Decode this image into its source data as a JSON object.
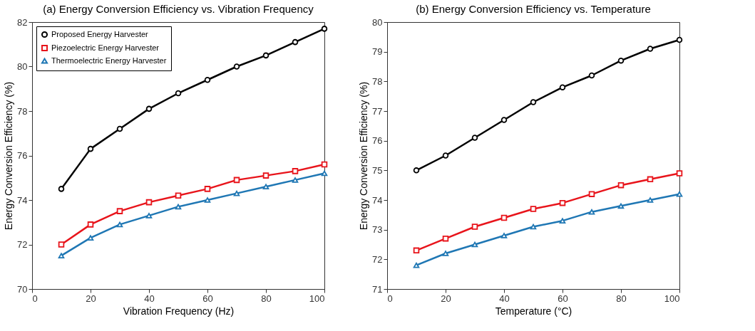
{
  "chart_data": [
    {
      "type": "line",
      "title": "(a) Energy Conversion Efficiency vs. Vibration Frequency",
      "xlabel": "Vibration Frequency (Hz)",
      "line_style": "solid",
      "ylabel": "Energy Conversion Efficiency (%)",
      "x": [
        10,
        20,
        30,
        40,
        50,
        60,
        70,
        80,
        90,
        100
      ],
      "xlim": [
        0,
        100
      ],
      "xticks": [
        0,
        20,
        40,
        60,
        80,
        100
      ],
      "ylim": [
        70,
        82
      ],
      "yticks": [
        70,
        72,
        74,
        76,
        78,
        80,
        82
      ],
      "grid": false,
      "legend": "top left",
      "series": [
        {
          "name": "Proposed Energy Harvester",
          "color": "#000000",
          "marker": "circle",
          "values": [
            74.5,
            76.3,
            77.2,
            78.1,
            78.8,
            79.4,
            80.0,
            80.5,
            81.1,
            81.7
          ]
        },
        {
          "name": "Piezoelectric Energy Harvester",
          "color": "#e8141b",
          "marker": "square",
          "values": [
            72.0,
            72.9,
            73.5,
            73.9,
            74.2,
            74.5,
            74.9,
            75.1,
            75.3,
            75.6
          ]
        },
        {
          "name": "Thermoelectric Energy Harvester",
          "color": "#1f77b4",
          "marker": "triangle",
          "values": [
            71.5,
            72.3,
            72.9,
            73.3,
            73.7,
            74.0,
            74.3,
            74.6,
            74.9,
            75.2
          ]
        }
      ]
    },
    {
      "type": "line",
      "title": "(b) Energy Conversion Efficiency vs. Temperature",
      "xlabel": "Temperature (°C)",
      "line_style": "solid",
      "ylabel": "Energy Conversion Efficiency (%)",
      "x": [
        10,
        20,
        30,
        40,
        50,
        60,
        70,
        80,
        90,
        100
      ],
      "xlim": [
        0,
        100
      ],
      "xticks": [
        0,
        20,
        40,
        60,
        80,
        100
      ],
      "ylim": [
        71,
        80
      ],
      "yticks": [
        71,
        72,
        73,
        74,
        75,
        76,
        77,
        78,
        79,
        80
      ],
      "grid": false,
      "legend": "top left",
      "series": [
        {
          "name": "Proposed Energy Harvester",
          "color": "#000000",
          "marker": "circle",
          "values": [
            75.0,
            75.5,
            76.1,
            76.7,
            77.3,
            77.8,
            78.2,
            78.7,
            79.1,
            79.4
          ]
        },
        {
          "name": "Piezoelectric Energy Harvester",
          "color": "#e8141b",
          "marker": "square",
          "values": [
            72.3,
            72.7,
            73.1,
            73.4,
            73.7,
            73.9,
            74.2,
            74.5,
            74.7,
            74.9
          ]
        },
        {
          "name": "Thermoelectric Energy Harvester",
          "color": "#1f77b4",
          "marker": "triangle",
          "values": [
            71.8,
            72.2,
            72.5,
            72.8,
            73.1,
            73.3,
            73.6,
            73.8,
            74.0,
            74.2
          ]
        }
      ]
    }
  ]
}
